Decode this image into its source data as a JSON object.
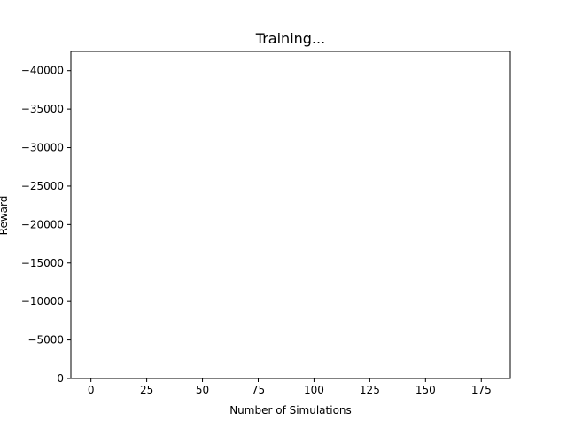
{
  "chart_data": {
    "type": "line",
    "title": "Training...",
    "xlabel": "Number of Simulations",
    "ylabel": "Reward",
    "xlim": [
      -9,
      188
    ],
    "ylim": [
      0,
      -42500
    ],
    "y_axis_inverted": true,
    "grid": false,
    "xticks": [
      0,
      25,
      50,
      75,
      100,
      125,
      150,
      175
    ],
    "yticks": [
      0,
      -5000,
      -10000,
      -15000,
      -20000,
      -25000,
      -30000,
      -35000,
      -40000
    ],
    "xtick_labels": [
      "0",
      "25",
      "50",
      "75",
      "100",
      "125",
      "150",
      "175"
    ],
    "ytick_labels": [
      "0",
      "−5000",
      "−10000",
      "−15000",
      "−20000",
      "−25000",
      "−30000",
      "−35000",
      "−40000"
    ],
    "series": []
  }
}
